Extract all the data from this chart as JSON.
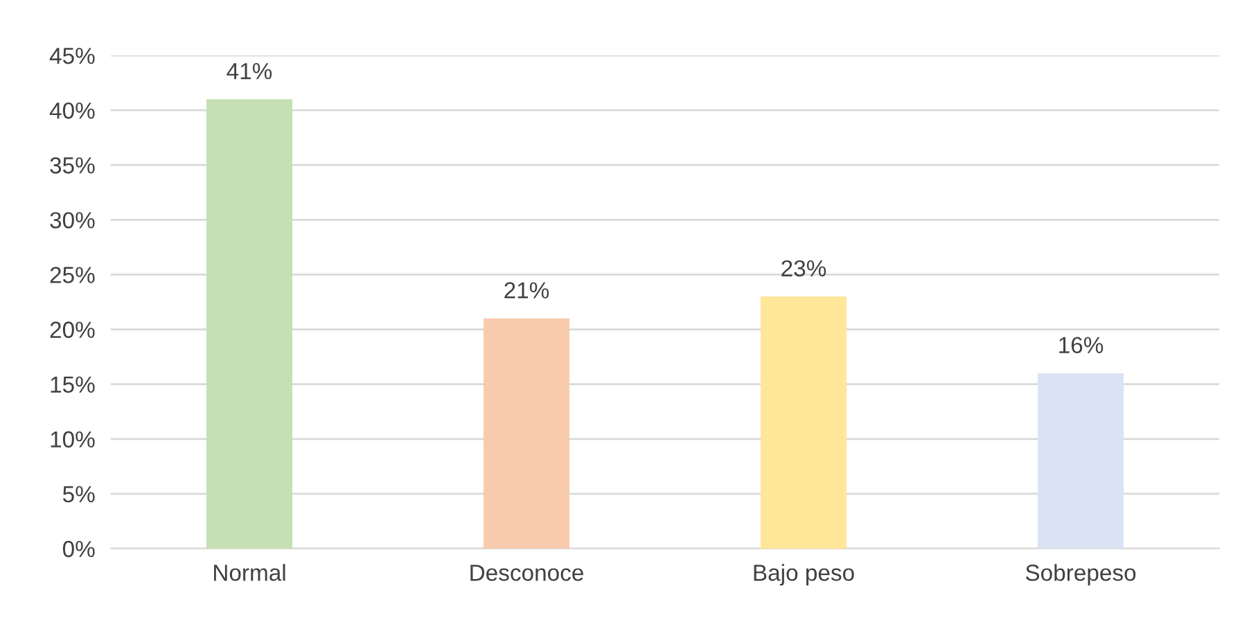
{
  "chart_data": {
    "type": "bar",
    "categories": [
      "Normal",
      "Desconoce",
      "Bajo peso",
      "Sobrepeso"
    ],
    "values": [
      41,
      21,
      23,
      16
    ],
    "colors": [
      "#c5e0b4",
      "#f8cbad",
      "#ffe699",
      "#dae3f3"
    ],
    "value_labels": [
      "41%",
      "21%",
      "23%",
      "16%"
    ],
    "ylim": [
      0,
      45
    ],
    "yticks": [
      {
        "value": 0,
        "label": "0%"
      },
      {
        "value": 5,
        "label": "5%"
      },
      {
        "value": 10,
        "label": "10%"
      },
      {
        "value": 15,
        "label": "15%"
      },
      {
        "value": 20,
        "label": "20%"
      },
      {
        "value": 25,
        "label": "25%"
      },
      {
        "value": 30,
        "label": "30%"
      },
      {
        "value": 35,
        "label": "35%"
      },
      {
        "value": 40,
        "label": "40%"
      },
      {
        "value": 45,
        "label": "45%"
      }
    ],
    "grid": "y"
  }
}
